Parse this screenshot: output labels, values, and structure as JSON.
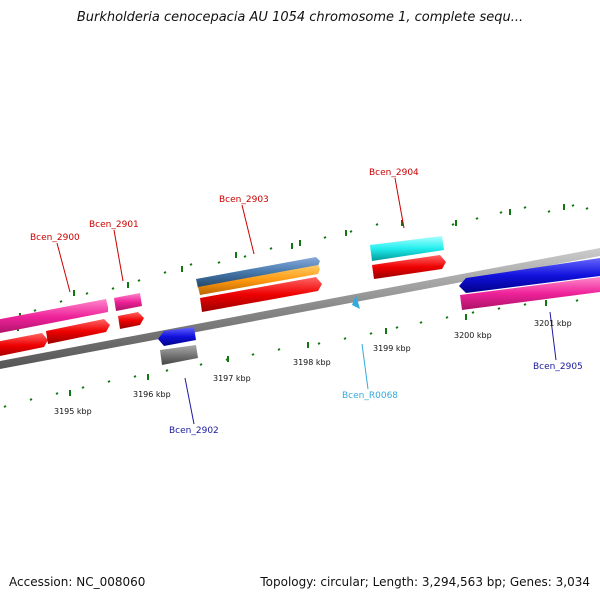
{
  "title": "Burkholderia cenocepacia AU 1054 chromosome 1, complete sequ...",
  "footer": {
    "accession": "Accession: NC_008060",
    "topology": "Topology: circular; Length: 3,294,563 bp; Genes: 3,034"
  },
  "colors": {
    "backbone": "#8a8a8a",
    "tick": "#117711",
    "label_red": "#cc0000",
    "label_blue": "#1a1aa0",
    "label_cyan": "#33aadd"
  },
  "scale": {
    "labels": [
      "3195 kbp",
      "3196 kbp",
      "3197 kbp",
      "3198 kbp",
      "3199 kbp",
      "3200 kbp",
      "3201 kbp"
    ]
  },
  "genes": [
    {
      "label": "Bcen_2900",
      "color": "#cc0000"
    },
    {
      "label": "Bcen_2901",
      "color": "#cc0000"
    },
    {
      "label": "Bcen_2903",
      "color": "#cc0000"
    },
    {
      "label": "Bcen_2904",
      "color": "#cc0000"
    },
    {
      "label": "Bcen_2902",
      "color": "#1a1aa0"
    },
    {
      "label": "Bcen_R0068",
      "color": "#33aadd"
    },
    {
      "label": "Bcen_2905",
      "color": "#1a1aa0"
    }
  ]
}
